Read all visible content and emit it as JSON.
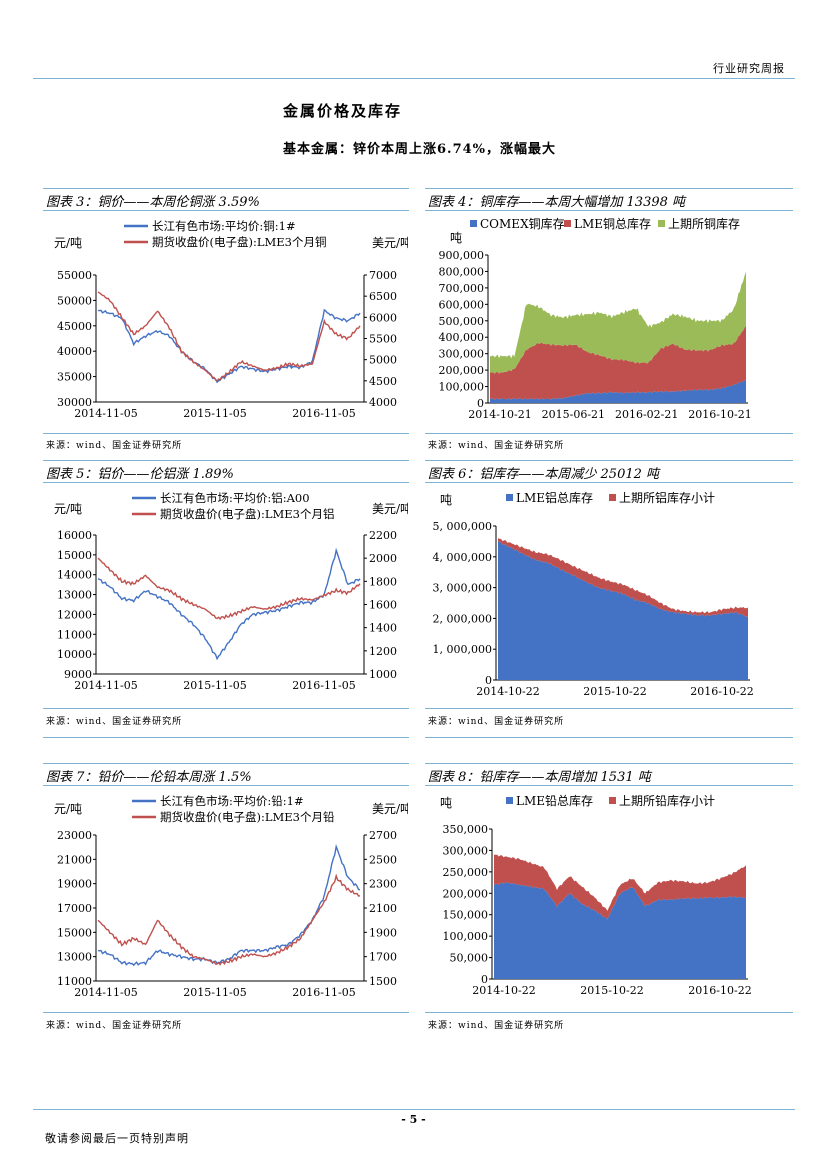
{
  "header": {
    "report_type": "行业研究周报"
  },
  "section": {
    "title": "金属价格及库存",
    "subtitle": "基本金属：锌价本周上涨6.74%，涨幅最大"
  },
  "source_note": "来源：wind、国金证券研究所",
  "page_number": "- 5 -",
  "footer": {
    "disclaimer": "敬请参阅最后一页特别声明"
  },
  "colors": {
    "blue": "#4472c4",
    "red": "#c0504d",
    "green": "#9bbb59",
    "rule": "#7fb3d5"
  },
  "figures": [
    {
      "caption": "图表 3：铜价——本周伦铜涨 3.59%"
    },
    {
      "caption": "图表 4：铜库存——本周大幅增加 13398 吨"
    },
    {
      "caption": "图表 5：铝价——伦铝涨 1.89%"
    },
    {
      "caption": "图表 6：铝库存——本周减少 25012 吨"
    },
    {
      "caption": "图表 7：铅价——伦铅本周涨 1.5%"
    },
    {
      "caption": "图表 8：铅库存——本周增加 1531 吨"
    }
  ],
  "chart_data": [
    {
      "id": "c3",
      "type": "line",
      "title": "铜价",
      "ylabel": "元/吨",
      "y2label": "美元/吨",
      "ylim": [
        30000,
        55000
      ],
      "yticks": [
        "55000",
        "50000",
        "45000",
        "40000",
        "35000",
        "30000"
      ],
      "y2lim": [
        4000,
        7000
      ],
      "y2ticks": [
        "7000",
        "6500",
        "6000",
        "5500",
        "5000",
        "4500",
        "4000"
      ],
      "xticks": [
        "2014-11-05",
        "2015-11-05",
        "2016-11-05"
      ],
      "series": [
        {
          "name": "长江有色市场:平均价:铜:1#",
          "axis": "left",
          "color": "#4472c4",
          "values": [
            48000,
            47500,
            46500,
            41500,
            43000,
            44000,
            43000,
            40000,
            38000,
            36500,
            34000,
            35500,
            37000,
            36500,
            36000,
            36500,
            37000,
            36800,
            38000,
            48000,
            46500,
            46000,
            47500
          ]
        },
        {
          "name": "期货收盘价(电子盘):LME3个月铜",
          "axis": "right",
          "color": "#c0504d",
          "values": [
            6600,
            6400,
            6000,
            5600,
            5800,
            6150,
            5750,
            5200,
            4950,
            4750,
            4500,
            4700,
            4950,
            4850,
            4750,
            4800,
            4900,
            4850,
            4900,
            5900,
            5600,
            5500,
            5800
          ]
        }
      ]
    },
    {
      "id": "c4",
      "type": "area",
      "title": "铜库存",
      "ylabel": "吨",
      "ylim": [
        0,
        900000
      ],
      "yticks": [
        "900,000",
        "800,000",
        "700,000",
        "600,000",
        "500,000",
        "400,000",
        "300,000",
        "200,000",
        "100,000",
        "0"
      ],
      "xticks": [
        "2014-10-21",
        "2015-06-21",
        "2016-02-21",
        "2016-10-21"
      ],
      "series": [
        {
          "name": "COMEX铜库存",
          "color": "#4472c4",
          "values": [
            25000,
            25000,
            25000,
            25000,
            25000,
            25000,
            30000,
            45000,
            60000,
            60000,
            65000,
            62000,
            65000,
            65000,
            70000,
            70000,
            75000,
            80000,
            80000,
            90000,
            110000,
            140000
          ]
        },
        {
          "name": "LME铜总库存",
          "color": "#c0504d",
          "values": [
            160000,
            160000,
            180000,
            300000,
            340000,
            330000,
            320000,
            310000,
            250000,
            230000,
            200000,
            200000,
            180000,
            180000,
            260000,
            290000,
            250000,
            240000,
            240000,
            260000,
            250000,
            330000
          ]
        },
        {
          "name": "上期所铜库存",
          "color": "#9bbb59",
          "values": [
            100000,
            100000,
            80000,
            280000,
            220000,
            180000,
            170000,
            180000,
            230000,
            260000,
            260000,
            290000,
            330000,
            220000,
            160000,
            180000,
            200000,
            180000,
            180000,
            150000,
            210000,
            330000
          ]
        }
      ]
    },
    {
      "id": "c5",
      "type": "line",
      "title": "铝价",
      "ylabel": "元/吨",
      "y2label": "美元/吨",
      "ylim": [
        9000,
        16000
      ],
      "yticks": [
        "16000",
        "15000",
        "14000",
        "13000",
        "12000",
        "11000",
        "10000",
        "9000"
      ],
      "y2lim": [
        1000,
        2200
      ],
      "y2ticks": [
        "2200",
        "2000",
        "1800",
        "1600",
        "1400",
        "1200",
        "1000"
      ],
      "xticks": [
        "2014-11-05",
        "2015-11-05",
        "2016-11-05"
      ],
      "series": [
        {
          "name": "长江有色市场:平均价:铝:A00",
          "axis": "left",
          "color": "#4472c4",
          "values": [
            13800,
            13400,
            12800,
            12700,
            13200,
            12900,
            12600,
            12000,
            11500,
            10800,
            9800,
            10600,
            11500,
            12000,
            12100,
            12200,
            12400,
            12600,
            12600,
            13000,
            15200,
            13500,
            13800
          ]
        },
        {
          "name": "期货收盘价(电子盘):LME3个月铝",
          "axis": "right",
          "color": "#c0504d",
          "values": [
            2000,
            1900,
            1800,
            1780,
            1850,
            1750,
            1720,
            1650,
            1600,
            1560,
            1480,
            1500,
            1540,
            1580,
            1560,
            1580,
            1620,
            1650,
            1640,
            1680,
            1720,
            1700,
            1780
          ]
        }
      ]
    },
    {
      "id": "c6",
      "type": "area",
      "title": "铝库存",
      "ylabel": "吨",
      "ylim": [
        0,
        5000000
      ],
      "yticks": [
        "5, 000,000",
        "4, 000,000",
        "3, 000,000",
        "2, 000,000",
        "1, 000,000",
        "0"
      ],
      "xticks": [
        "2014-10-22",
        "2015-10-22",
        "2016-10-22"
      ],
      "series": [
        {
          "name": "LME铝总库存",
          "color": "#4472c4",
          "values": [
            4500000,
            4300000,
            4100000,
            3900000,
            3800000,
            3600000,
            3400000,
            3200000,
            3000000,
            2900000,
            2800000,
            2600000,
            2500000,
            2300000,
            2200000,
            2150000,
            2100000,
            2100000,
            2150000,
            2200000,
            2050000
          ]
        },
        {
          "name": "上期所铝库存小计",
          "color": "#c0504d",
          "values": [
            100000,
            150000,
            200000,
            250000,
            280000,
            300000,
            300000,
            320000,
            330000,
            300000,
            300000,
            320000,
            250000,
            200000,
            100000,
            80000,
            100000,
            100000,
            150000,
            150000,
            300000
          ]
        }
      ]
    },
    {
      "id": "c7",
      "type": "line",
      "title": "铅价",
      "ylabel": "元/吨",
      "y2label": "美元/吨",
      "ylim": [
        11000,
        23000
      ],
      "yticks": [
        "23000",
        "21000",
        "19000",
        "17000",
        "15000",
        "13000",
        "11000"
      ],
      "y2lim": [
        1500,
        2700
      ],
      "y2ticks": [
        "2700",
        "2500",
        "2300",
        "2100",
        "1900",
        "1700",
        "1500"
      ],
      "xticks": [
        "2014-11-05",
        "2015-11-05",
        "2016-11-05"
      ],
      "series": [
        {
          "name": "长江有色市场:平均价:铅:1#",
          "axis": "left",
          "color": "#4472c4",
          "values": [
            13500,
            13200,
            12500,
            12400,
            12500,
            13500,
            13200,
            13000,
            12800,
            12800,
            12500,
            12800,
            13500,
            13500,
            13500,
            13800,
            14000,
            14800,
            16000,
            18000,
            22000,
            19500,
            18500
          ]
        },
        {
          "name": "期货收盘价(电子盘):LME3个月铅",
          "axis": "right",
          "color": "#c0504d",
          "values": [
            2000,
            1900,
            1800,
            1850,
            1800,
            2000,
            1880,
            1780,
            1700,
            1680,
            1640,
            1660,
            1700,
            1720,
            1700,
            1730,
            1780,
            1850,
            2000,
            2150,
            2350,
            2250,
            2200
          ]
        }
      ]
    },
    {
      "id": "c8",
      "type": "area",
      "title": "铅库存",
      "ylabel": "吨",
      "ylim": [
        0,
        350000
      ],
      "yticks": [
        "350,000",
        "300,000",
        "250,000",
        "200,000",
        "150,000",
        "100,000",
        "50,000",
        "0"
      ],
      "xticks": [
        "2014-10-22",
        "2015-10-22",
        "2016-10-22"
      ],
      "series": [
        {
          "name": "LME铅总库存",
          "color": "#4472c4",
          "values": [
            220000,
            225000,
            220000,
            215000,
            210000,
            170000,
            200000,
            175000,
            160000,
            140000,
            200000,
            215000,
            170000,
            185000,
            185000,
            188000,
            188000,
            190000,
            190000,
            192000,
            190000
          ]
        },
        {
          "name": "上期所铅库存小计",
          "color": "#c0504d",
          "values": [
            70000,
            60000,
            60000,
            55000,
            50000,
            40000,
            40000,
            40000,
            30000,
            20000,
            20000,
            20000,
            30000,
            40000,
            45000,
            40000,
            35000,
            35000,
            45000,
            55000,
            75000
          ]
        }
      ]
    }
  ]
}
